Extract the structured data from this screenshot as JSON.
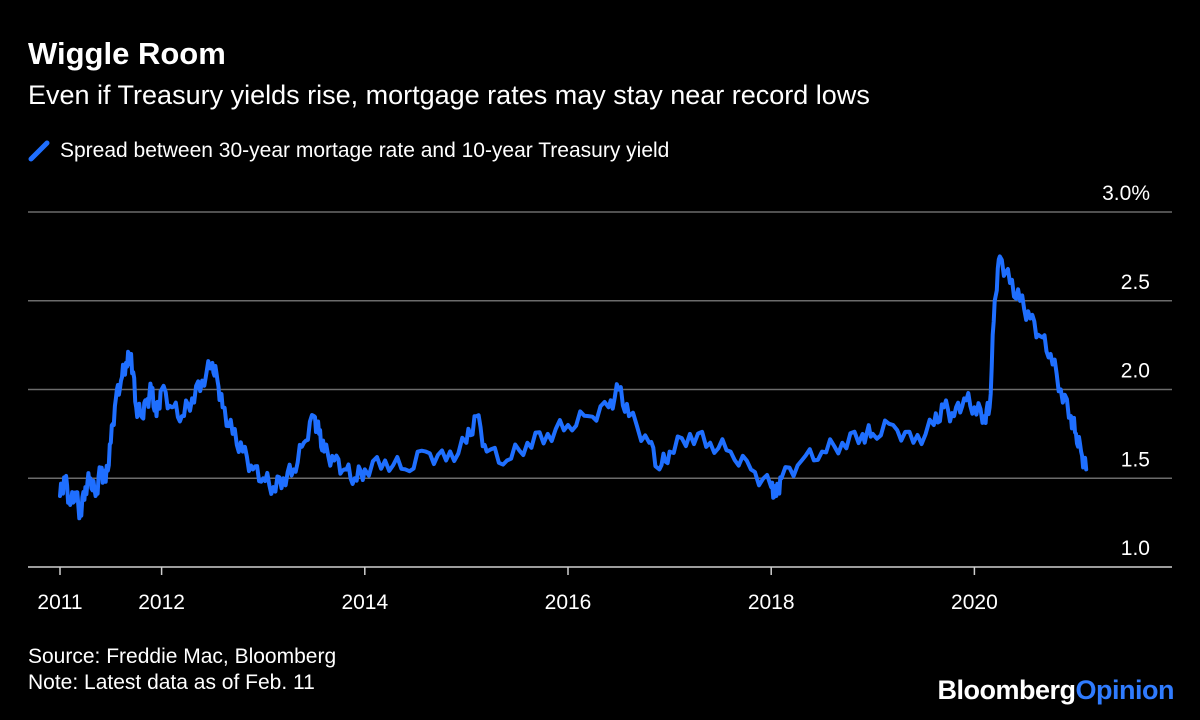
{
  "title": "Wiggle Room",
  "subtitle": "Even if Treasury yields rise, mortgage rates may stay near record lows",
  "legend_label": "Spread between 30-year mortage rate and 10-year Treasury yield",
  "source": "Source: Freddie Mac, Bloomberg",
  "note": "Note: Latest data as of Feb. 11",
  "brand": {
    "part1": "Bloomberg",
    "part2": "Opinion"
  },
  "colors": {
    "background": "#000000",
    "line": "#1f6fff",
    "grid": "#6b6b6b",
    "text": "#ffffff",
    "brand_accent": "#2f7bff"
  },
  "chart_data": {
    "type": "line",
    "title": "Wiggle Room",
    "subtitle": "Even if Treasury yields rise, mortgage rates may stay near record lows",
    "xlabel": "",
    "ylabel": "",
    "ylim": [
      1.0,
      3.0
    ],
    "xlim": [
      2011.0,
      2021.3
    ],
    "y_ticks": [
      {
        "value": 3.0,
        "label": "3.0%"
      },
      {
        "value": 2.5,
        "label": "2.5"
      },
      {
        "value": 2.0,
        "label": "2.0"
      },
      {
        "value": 1.5,
        "label": "1.5"
      },
      {
        "value": 1.0,
        "label": "1.0"
      }
    ],
    "x_ticks": [
      {
        "value": 2011,
        "label": "2011"
      },
      {
        "value": 2012,
        "label": "2012"
      },
      {
        "value": 2014,
        "label": "2014"
      },
      {
        "value": 2016,
        "label": "2016"
      },
      {
        "value": 2018,
        "label": "2018"
      },
      {
        "value": 2020,
        "label": "2020"
      }
    ],
    "grid": true,
    "legend_position": "top-left",
    "series": [
      {
        "name": "Spread between 30-year mortage rate and 10-year Treasury yield",
        "color": "#1f6fff",
        "x": [
          2011.0,
          2011.05,
          2011.1,
          2011.15,
          2011.2,
          2011.25,
          2011.3,
          2011.35,
          2011.4,
          2011.45,
          2011.5,
          2011.55,
          2011.6,
          2011.65,
          2011.7,
          2011.75,
          2011.8,
          2011.85,
          2011.9,
          2011.95,
          2012.0,
          2012.1,
          2012.2,
          2012.3,
          2012.4,
          2012.5,
          2012.55,
          2012.6,
          2012.7,
          2012.8,
          2012.9,
          2013.0,
          2013.1,
          2013.2,
          2013.3,
          2013.4,
          2013.5,
          2013.55,
          2013.6,
          2013.7,
          2013.8,
          2013.9,
          2014.0,
          2014.2,
          2014.4,
          2014.6,
          2014.8,
          2015.0,
          2015.1,
          2015.2,
          2015.4,
          2015.6,
          2015.8,
          2016.0,
          2016.2,
          2016.4,
          2016.5,
          2016.6,
          2016.8,
          2016.9,
          2017.0,
          2017.2,
          2017.4,
          2017.6,
          2017.8,
          2018.0,
          2018.05,
          2018.1,
          2018.3,
          2018.5,
          2018.7,
          2018.9,
          2019.0,
          2019.2,
          2019.4,
          2019.6,
          2019.7,
          2019.8,
          2019.9,
          2020.0,
          2020.1,
          2020.15,
          2020.2,
          2020.25,
          2020.35,
          2020.45,
          2020.55,
          2020.65,
          2020.75,
          2020.85,
          2020.95,
          2021.0,
          2021.05,
          2021.1
        ],
        "values": [
          1.4,
          1.5,
          1.35,
          1.42,
          1.3,
          1.45,
          1.5,
          1.4,
          1.55,
          1.48,
          1.7,
          1.95,
          2.05,
          2.15,
          2.2,
          1.9,
          1.85,
          1.92,
          2.0,
          1.85,
          2.0,
          1.9,
          1.85,
          1.95,
          2.05,
          2.15,
          2.05,
          1.9,
          1.75,
          1.65,
          1.55,
          1.5,
          1.45,
          1.5,
          1.55,
          1.7,
          1.85,
          1.75,
          1.65,
          1.6,
          1.55,
          1.5,
          1.55,
          1.6,
          1.55,
          1.65,
          1.6,
          1.7,
          1.85,
          1.65,
          1.6,
          1.7,
          1.75,
          1.8,
          1.85,
          1.9,
          2.0,
          1.85,
          1.7,
          1.55,
          1.65,
          1.75,
          1.7,
          1.65,
          1.55,
          1.45,
          1.4,
          1.5,
          1.6,
          1.65,
          1.7,
          1.75,
          1.75,
          1.8,
          1.7,
          1.8,
          1.9,
          1.85,
          1.95,
          1.9,
          1.85,
          1.9,
          2.5,
          2.75,
          2.6,
          2.5,
          2.4,
          2.3,
          2.2,
          2.0,
          1.85,
          1.75,
          1.65,
          1.55
        ]
      }
    ]
  }
}
